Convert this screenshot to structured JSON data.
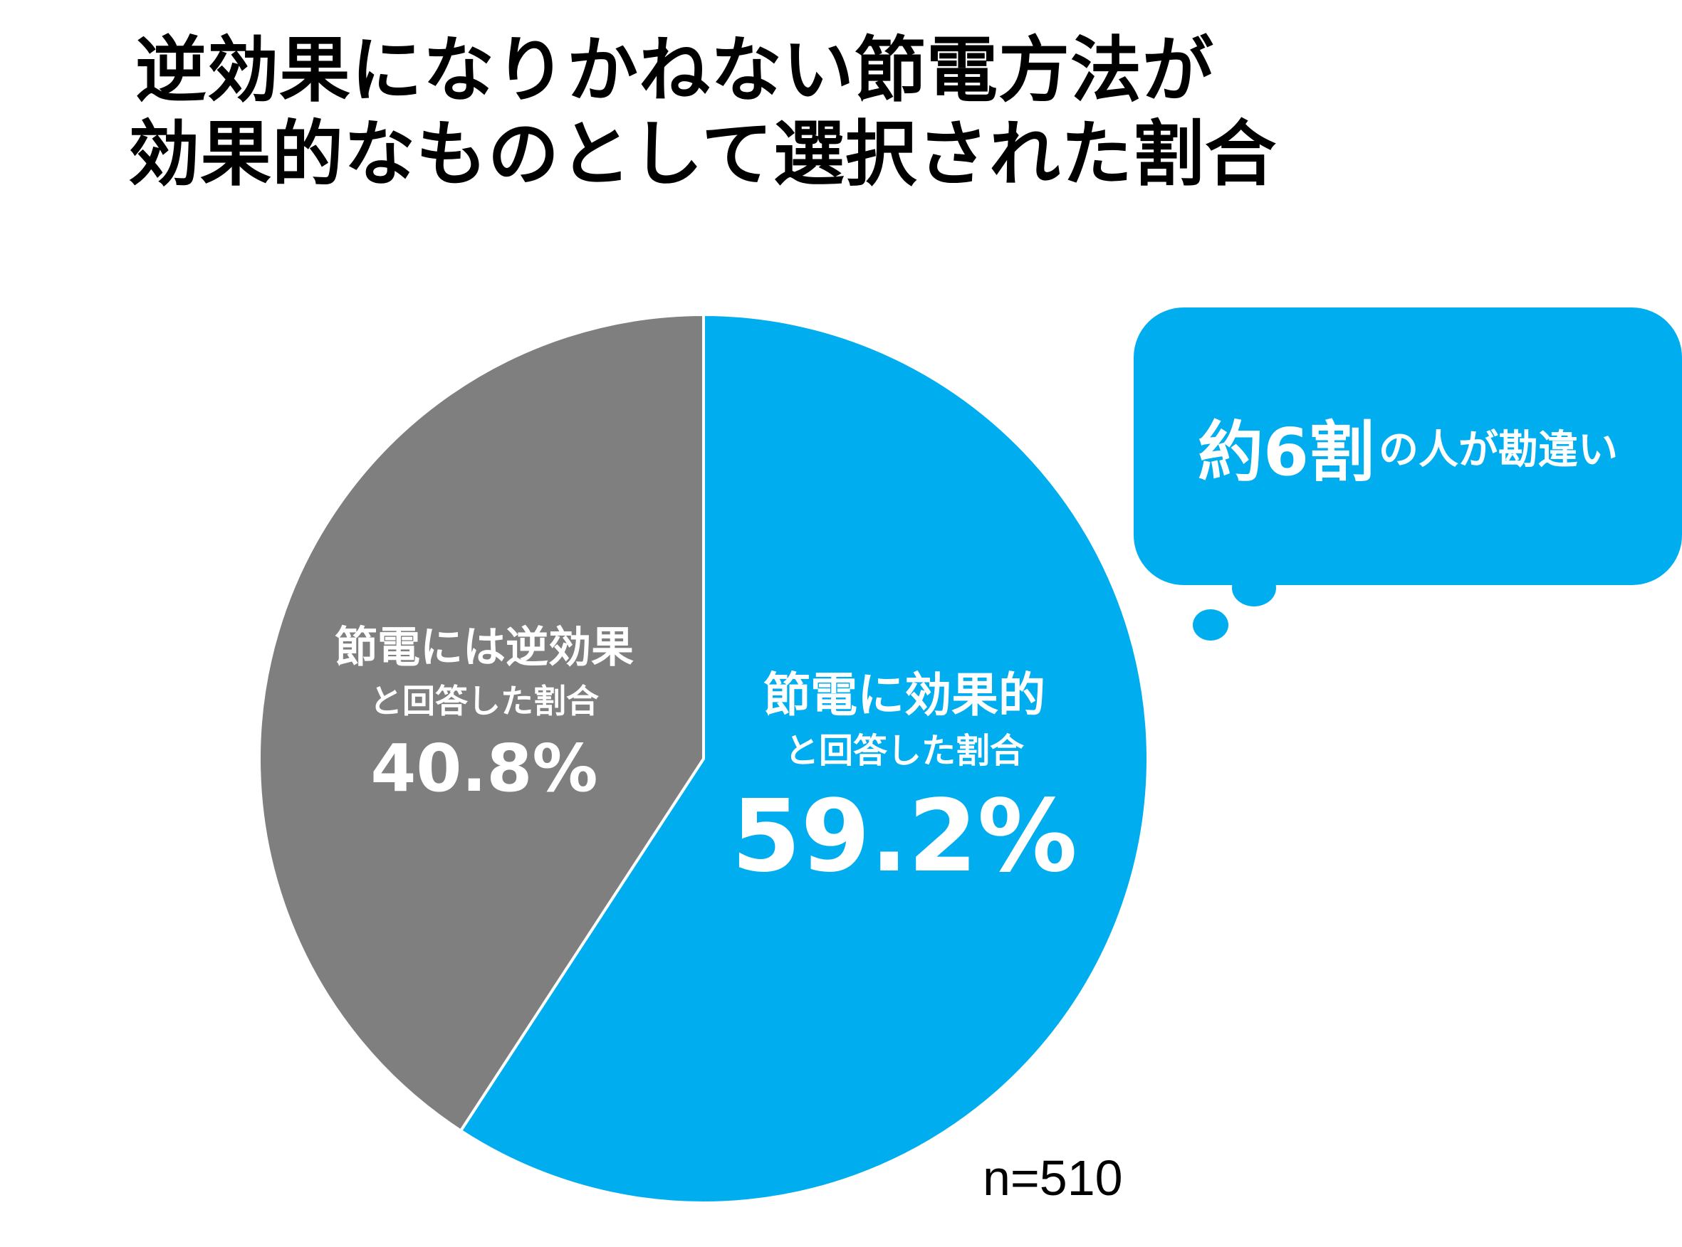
{
  "title": {
    "line1": "逆効果になりかねない節電方法が",
    "line2": "効果的なものとして選択された割合"
  },
  "chart_data": {
    "type": "pie",
    "slices": [
      {
        "name": "節電に効果的と回答した割合",
        "label_line1": "節電に効果的",
        "label_line2": "と回答した割合",
        "value": 59.2,
        "value_label": "59.2%",
        "color": "#00aeef"
      },
      {
        "name": "節電には逆効果と回答した割合",
        "label_line1": "節電には逆効果",
        "label_line2": "と回答した割合",
        "value": 40.8,
        "value_label": "40.8%",
        "color": "#7f7f7f"
      }
    ],
    "start_angle_deg": 0,
    "direction": "clockwise",
    "sample_size": "n=510"
  },
  "callout": {
    "main": "約6割",
    "rest": "の人が勘違い",
    "color": "#00aeef"
  }
}
